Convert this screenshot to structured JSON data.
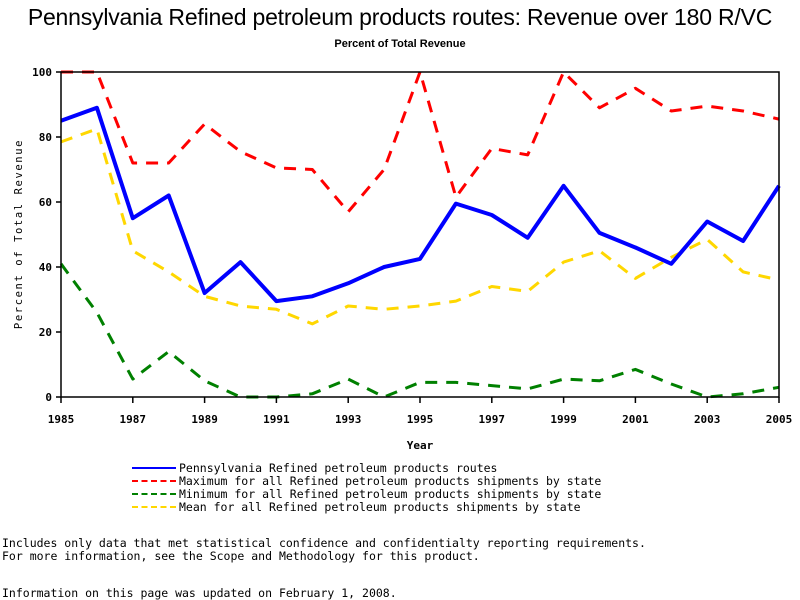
{
  "chart_data": {
    "type": "line",
    "title": "Pennsylvania Refined petroleum products routes: Revenue over 180 R/VC",
    "subtitle": "Percent of Total Revenue",
    "xlabel": "Year",
    "ylabel": "Percent of Total Revenue",
    "xlim": [
      1985,
      2005
    ],
    "ylim": [
      0,
      100
    ],
    "grid": false,
    "legend_position": "bottom",
    "x_ticks": [
      "1985",
      "1987",
      "1989",
      "1991",
      "1993",
      "1995",
      "1997",
      "1999",
      "2001",
      "2003",
      "2005"
    ],
    "y_ticks": [
      "0",
      "20",
      "40",
      "60",
      "80",
      "100"
    ],
    "x": [
      1985,
      1986,
      1987,
      1988,
      1989,
      1990,
      1991,
      1992,
      1993,
      1994,
      1995,
      1996,
      1997,
      1998,
      1999,
      2000,
      2001,
      2002,
      2003,
      2004,
      2005
    ],
    "series": [
      {
        "name": "Pennsylvania Refined petroleum products routes",
        "color": "#0000ff",
        "style": "solid",
        "values": [
          85,
          89,
          55,
          62,
          32,
          41.5,
          29.5,
          31,
          35,
          40,
          42.5,
          59.5,
          56,
          49,
          65,
          50.5,
          46,
          41,
          54,
          48,
          65
        ]
      },
      {
        "name": "Maximum for all Refined petroleum products shipments by state",
        "color": "#ff0000",
        "style": "dashed",
        "values": [
          100,
          100,
          72,
          72,
          84,
          75.5,
          70.5,
          70,
          57,
          70,
          100,
          61.5,
          76.5,
          74.5,
          100,
          89,
          95,
          88,
          89.5,
          88,
          85.5
        ]
      },
      {
        "name": "Minimum for all Refined petroleum products shipments by state",
        "color": "#008000",
        "style": "dashed",
        "values": [
          41,
          26,
          5.5,
          14,
          5,
          0,
          0,
          1,
          5.5,
          0,
          4.5,
          4.5,
          3.5,
          2.5,
          5.5,
          5,
          8.5,
          4,
          0,
          1,
          3
        ]
      },
      {
        "name": "Mean for all Refined petroleum products shipments by state",
        "color": "#ffd700",
        "style": "dashed",
        "values": [
          78.5,
          82.5,
          45,
          38.5,
          31,
          28,
          27,
          22.5,
          28,
          27,
          28,
          29.5,
          34,
          32.5,
          41.5,
          45,
          36.5,
          43,
          48.5,
          38.5,
          36
        ]
      }
    ]
  },
  "notes": {
    "line1": "Includes only data that met statistical confidence and confidentialty reporting requirements.",
    "line2": "For more information, see the Scope and Methodology for this product.",
    "updated": "Information on this page was updated on February 1, 2008."
  }
}
